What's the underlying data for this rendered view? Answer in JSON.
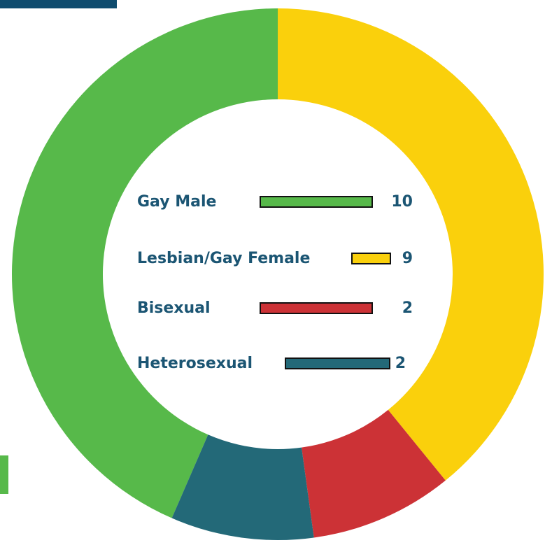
{
  "chart_data": {
    "type": "donut",
    "categories": [
      "Gay Male",
      "Lesbian/Gay Female",
      "Bisexual",
      "Heterosexual"
    ],
    "values": [
      10,
      9,
      2,
      2
    ],
    "colors": [
      "#57b94a",
      "#fad00c",
      "#cc3236",
      "#236978"
    ]
  }
}
